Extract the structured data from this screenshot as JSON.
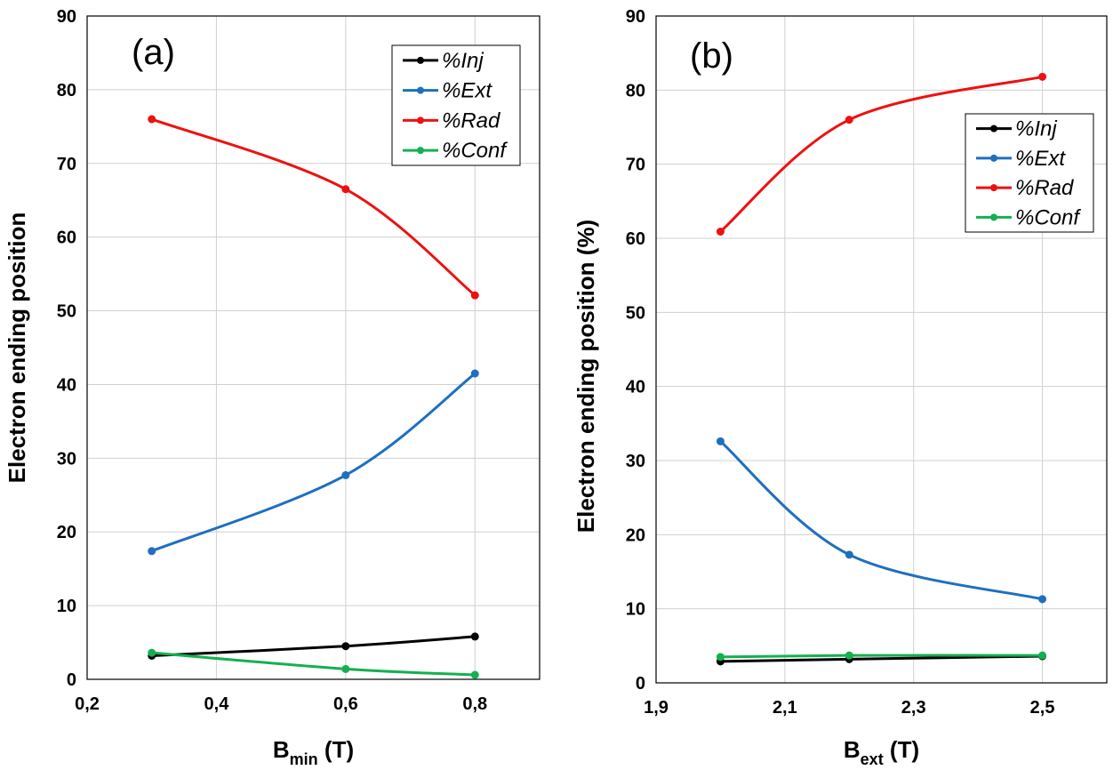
{
  "chart_data": [
    {
      "type": "line",
      "panel_label": "(a)",
      "xlabel": "B",
      "xlabel_sub": "min",
      "xlabel_unit": " (T)",
      "ylabel": "Electron ending position",
      "xlim": [
        0.2,
        0.9
      ],
      "ylim": [
        0,
        90
      ],
      "xticks": [
        0.2,
        0.4,
        0.6,
        0.8
      ],
      "xtick_labels": [
        "0,2",
        "0,4",
        "0,6",
        "0,8"
      ],
      "yticks": [
        0,
        10,
        20,
        30,
        40,
        50,
        60,
        70,
        80,
        90
      ],
      "ytick_labels": [
        "0",
        "10",
        "20",
        "30",
        "40",
        "50",
        "60",
        "70",
        "80",
        "90"
      ],
      "grid": true,
      "legend_position": "top-right",
      "x": [
        0.3,
        0.6,
        0.8
      ],
      "series": [
        {
          "name": "%Inj",
          "color": "#000000",
          "values": [
            3.2,
            4.5,
            5.8
          ]
        },
        {
          "name": "%Ext",
          "color": "#1f6fbf",
          "values": [
            17.4,
            27.7,
            41.5
          ]
        },
        {
          "name": "%Rad",
          "color": "#ee1111",
          "values": [
            76.0,
            66.5,
            52.1
          ]
        },
        {
          "name": "%Conf",
          "color": "#14b050",
          "values": [
            3.6,
            1.4,
            0.6
          ]
        }
      ]
    },
    {
      "type": "line",
      "panel_label": "(b)",
      "xlabel": "B",
      "xlabel_sub": "ext",
      "xlabel_unit": " (T)",
      "ylabel": "Electron ending position (%)",
      "xlim": [
        1.9,
        2.6
      ],
      "ylim": [
        0,
        90
      ],
      "xticks": [
        1.9,
        2.1,
        2.3,
        2.5
      ],
      "xtick_labels": [
        "1,9",
        "2,1",
        "2,3",
        "2,5"
      ],
      "yticks": [
        0,
        10,
        20,
        30,
        40,
        50,
        60,
        70,
        80,
        90
      ],
      "ytick_labels": [
        "0",
        "10",
        "20",
        "30",
        "40",
        "50",
        "60",
        "70",
        "80",
        "90"
      ],
      "grid": true,
      "legend_position": "upper-right",
      "x": [
        2.0,
        2.2,
        2.5
      ],
      "series": [
        {
          "name": "%Inj",
          "color": "#000000",
          "values": [
            2.9,
            3.2,
            3.6
          ]
        },
        {
          "name": "%Ext",
          "color": "#1f6fbf",
          "values": [
            32.6,
            17.3,
            11.3
          ]
        },
        {
          "name": "%Rad",
          "color": "#ee1111",
          "values": [
            60.9,
            76.0,
            81.8
          ]
        },
        {
          "name": "%Conf",
          "color": "#14b050",
          "values": [
            3.5,
            3.7,
            3.7
          ]
        }
      ]
    }
  ]
}
